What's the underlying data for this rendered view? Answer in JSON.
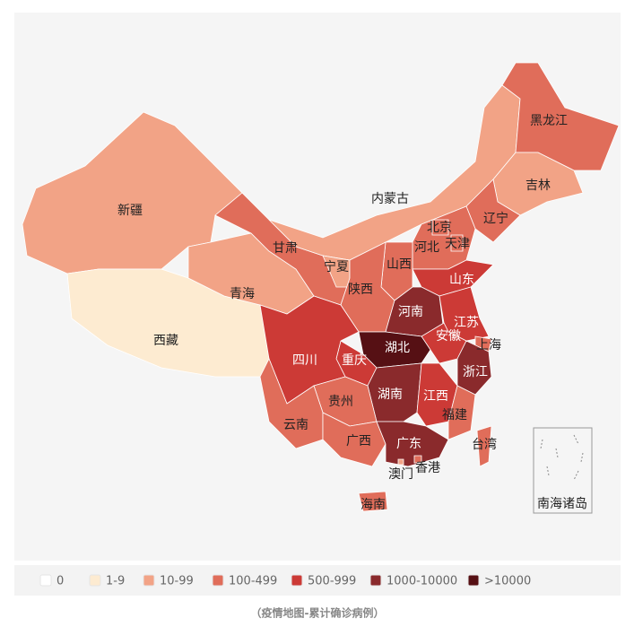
{
  "provinces": [
    {
      "name": "新疆",
      "color": "#f2a386"
    },
    {
      "name": "西藏",
      "color": "#fdebd1"
    },
    {
      "name": "青海",
      "color": "#f2a386"
    },
    {
      "name": "甘肃",
      "color": "#e06d5a"
    },
    {
      "name": "内蒙古",
      "color": "#f2a386"
    },
    {
      "name": "黑龙江",
      "color": "#e06d5a"
    },
    {
      "name": "吉林",
      "color": "#f2a386"
    },
    {
      "name": "辽宁",
      "color": "#e06d5a"
    },
    {
      "name": "河北",
      "color": "#e06d5a"
    },
    {
      "name": "北京",
      "color": "#e06d5a"
    },
    {
      "name": "天津",
      "color": "#e06d5a"
    },
    {
      "name": "宁夏",
      "color": "#f2a386"
    },
    {
      "name": "山西",
      "color": "#e06d5a"
    },
    {
      "name": "陕西",
      "color": "#e06d5a"
    },
    {
      "name": "山东",
      "color": "#cc3a36"
    },
    {
      "name": "河南",
      "color": "#8a2a2c"
    },
    {
      "name": "江苏",
      "color": "#cc3a36"
    },
    {
      "name": "安徽",
      "color": "#cc3a36"
    },
    {
      "name": "上海",
      "color": "#e06d5a"
    },
    {
      "name": "湖北",
      "color": "#561014"
    },
    {
      "name": "浙江",
      "color": "#8a2a2c"
    },
    {
      "name": "重庆",
      "color": "#cc3a36"
    },
    {
      "name": "四川",
      "color": "#cc3a36"
    },
    {
      "name": "湖南",
      "color": "#8a2a2c"
    },
    {
      "name": "江西",
      "color": "#cc3a36"
    },
    {
      "name": "福建",
      "color": "#e06d5a"
    },
    {
      "name": "贵州",
      "color": "#e06d5a"
    },
    {
      "name": "云南",
      "color": "#e06d5a"
    },
    {
      "name": "广西",
      "color": "#e06d5a"
    },
    {
      "name": "广东",
      "color": "#8a2a2c"
    },
    {
      "name": "香港",
      "color": "#e06d5a"
    },
    {
      "name": "澳门",
      "color": "#f2a386"
    },
    {
      "name": "台湾",
      "color": "#e06d5a"
    },
    {
      "name": "海南",
      "color": "#e06d5a"
    }
  ],
  "inset_label": "南海诸岛",
  "legend": [
    {
      "label": "0",
      "color": "#ffffff"
    },
    {
      "label": "1-9",
      "color": "#fdebd1"
    },
    {
      "label": "10-99",
      "color": "#f2a386"
    },
    {
      "label": "100-499",
      "color": "#e06d5a"
    },
    {
      "label": "500-999",
      "color": "#cc3a36"
    },
    {
      "label": "1000-10000",
      "color": "#8a2a2c"
    },
    {
      "label": ">10000",
      "color": "#561014"
    }
  ],
  "caption": "（疫情地图-累计确诊病例）"
}
